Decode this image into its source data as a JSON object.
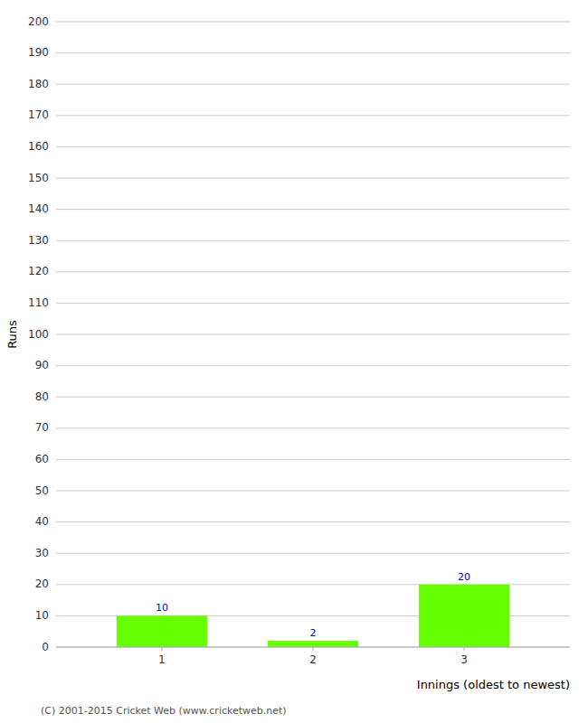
{
  "chart_data": {
    "type": "bar",
    "categories": [
      "1",
      "2",
      "3"
    ],
    "values": [
      10,
      2,
      20
    ],
    "color": "#66ff00",
    "xlabel": "Innings (oldest to newest)",
    "ylabel": "Runs",
    "ylim": [
      0,
      200
    ],
    "yticks": [
      0,
      10,
      20,
      30,
      40,
      50,
      60,
      70,
      80,
      90,
      100,
      110,
      120,
      130,
      140,
      150,
      160,
      170,
      180,
      190,
      200
    ],
    "grid": true,
    "data_labels": true,
    "annotations": [
      "(C) 2001-2015 Cricket Web (www.cricketweb.net)"
    ]
  }
}
